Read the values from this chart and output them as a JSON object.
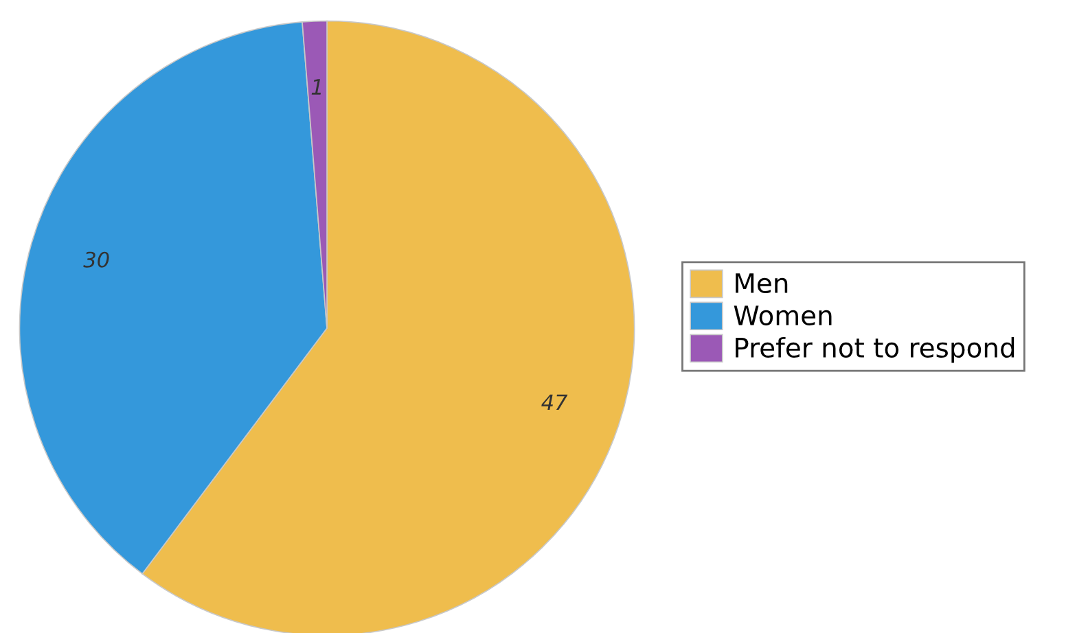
{
  "chart_data": {
    "type": "pie",
    "categories": [
      "Men",
      "Women",
      "Prefer not to respond"
    ],
    "values": [
      47,
      30,
      1
    ],
    "colors": [
      "#efbd4d",
      "#3498db",
      "#9b59b6"
    ],
    "data_labels": true,
    "legend": "right"
  }
}
